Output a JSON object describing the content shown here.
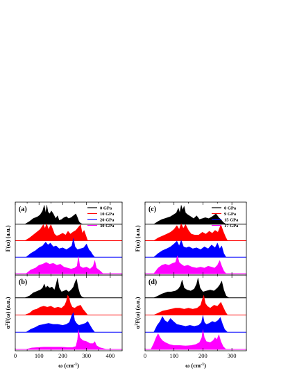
{
  "figure": {
    "panels": [
      {
        "letter": "(a)",
        "ylabel_main": "F(ω) (a.u.)",
        "ylabel_sup": "",
        "xlabel_main": "",
        "xlabel_sup": "",
        "xlim": [
          0,
          450
        ],
        "xticks": [],
        "legend": [
          {
            "label": "0 GPa",
            "color": "#000000"
          },
          {
            "label": "10 GPa",
            "color": "#ff0000"
          },
          {
            "label": "20 GPa",
            "color": "#0000ff"
          },
          {
            "label": "30 GPa",
            "color": "#ff00ff"
          }
        ]
      },
      {
        "letter": "(b)",
        "ylabel_main": "α",
        "ylabel_sup": "2",
        "ylabel_rest": "F(ω) (a.u.)",
        "xlabel_main": "ω (cm",
        "xlabel_sup": "-1",
        "xlabel_end": ")",
        "xlim": [
          0,
          450
        ],
        "xticks": [
          "0",
          "100",
          "200",
          "300",
          "400"
        ],
        "legend": []
      },
      {
        "letter": "(c)",
        "ylabel_main": "F(ω) (a.u.)",
        "ylabel_sup": "",
        "xlabel_main": "",
        "xlabel_sup": "",
        "xlim": [
          0,
          350
        ],
        "xticks": [],
        "legend": [
          {
            "label": "0 GPa",
            "color": "#000000"
          },
          {
            "label": "9 GPa",
            "color": "#ff0000"
          },
          {
            "label": "15 GPa",
            "color": "#0000ff"
          },
          {
            "label": "17 GPa",
            "color": "#ff00ff"
          }
        ]
      },
      {
        "letter": "(d)",
        "ylabel_main": "α",
        "ylabel_sup": "2",
        "ylabel_rest": "F(ω) (a.u.)",
        "xlabel_main": "ω (cm",
        "xlabel_sup": "-1",
        "xlabel_end": ")",
        "xlim": [
          0,
          350
        ],
        "xticks": [
          "0",
          "100",
          "200",
          "300"
        ],
        "legend": []
      }
    ]
  },
  "chart_data": [
    {
      "type": "area",
      "panel": "(a)",
      "xlim": [
        0,
        450
      ],
      "ylabel": "F(ω) (a.u.)",
      "series": [
        {
          "name": "0 GPa",
          "color": "#000000",
          "x": [
            40,
            60,
            75,
            85,
            95,
            105,
            115,
            122,
            128,
            133,
            138,
            145,
            152,
            160,
            170,
            178,
            185,
            195,
            205,
            215,
            225,
            235,
            245,
            255,
            262,
            268,
            275,
            285
          ],
          "y": [
            0,
            0.15,
            0.3,
            0.35,
            0.4,
            0.5,
            0.7,
            1.0,
            0.6,
            1.0,
            0.65,
            0.55,
            0.7,
            0.55,
            0.3,
            0.45,
            0.2,
            0.25,
            0.35,
            0.4,
            0.3,
            0.35,
            0.45,
            0.55,
            0.35,
            0.15,
            0.05,
            0
          ]
        },
        {
          "name": "10 GPa",
          "color": "#ff0000",
          "x": [
            40,
            60,
            75,
            90,
            105,
            118,
            125,
            132,
            140,
            150,
            158,
            165,
            175,
            185,
            200,
            212,
            222,
            232,
            242,
            255,
            265,
            275,
            282,
            290,
            298,
            305
          ],
          "y": [
            0,
            0.15,
            0.3,
            0.45,
            0.6,
            0.85,
            0.65,
            0.9,
            0.6,
            0.85,
            0.6,
            0.35,
            0.25,
            0.3,
            0.4,
            0.3,
            0.5,
            0.35,
            0.45,
            0.55,
            0.7,
            0.85,
            0.4,
            0.55,
            0.25,
            0
          ]
        },
        {
          "name": "20 GPa",
          "color": "#0000ff",
          "x": [
            45,
            65,
            85,
            100,
            115,
            128,
            138,
            148,
            160,
            172,
            185,
            200,
            215,
            228,
            238,
            245,
            252,
            262,
            275,
            288,
            300,
            310,
            318,
            325,
            335
          ],
          "y": [
            0,
            0.2,
            0.35,
            0.5,
            0.6,
            0.8,
            0.65,
            0.75,
            0.55,
            0.6,
            0.45,
            0.5,
            0.4,
            0.5,
            0.6,
            1.0,
            0.55,
            0.4,
            0.45,
            0.5,
            0.7,
            0.4,
            0.3,
            0.15,
            0
          ]
        },
        {
          "name": "30 GPa",
          "color": "#ff00ff",
          "x": [
            45,
            65,
            85,
            100,
            115,
            130,
            145,
            160,
            175,
            190,
            205,
            220,
            235,
            250,
            260,
            266,
            272,
            285,
            300,
            315,
            328,
            335,
            342,
            352,
            362,
            370
          ],
          "y": [
            0,
            0.2,
            0.3,
            0.45,
            0.5,
            0.6,
            0.5,
            0.55,
            0.45,
            0.5,
            0.35,
            0.3,
            0.25,
            0.3,
            0.4,
            0.9,
            0.4,
            0.3,
            0.35,
            0.25,
            0.4,
            0.7,
            0.3,
            0.2,
            0.1,
            0
          ]
        }
      ]
    },
    {
      "type": "area",
      "panel": "(b)",
      "xlim": [
        0,
        450
      ],
      "xlabel": "ω (cm-1)",
      "ylabel": "α2F(ω) (a.u.)",
      "series": [
        {
          "name": "0 GPa",
          "color": "#000000",
          "x": [
            40,
            60,
            75,
            85,
            95,
            105,
            115,
            122,
            128,
            135,
            145,
            155,
            165,
            172,
            178,
            185,
            195,
            205,
            215,
            225,
            235,
            245,
            252,
            258,
            265,
            272,
            280,
            290
          ],
          "y": [
            0,
            0.1,
            0.25,
            0.3,
            0.35,
            0.4,
            0.5,
            0.7,
            0.5,
            0.6,
            0.5,
            0.55,
            0.4,
            0.7,
            1.0,
            0.5,
            0.3,
            0.35,
            0.4,
            0.3,
            0.4,
            0.55,
            0.8,
            0.95,
            0.5,
            0.2,
            0.05,
            0
          ]
        },
        {
          "name": "10 GPa",
          "color": "#ff0000",
          "x": [
            40,
            60,
            75,
            90,
            105,
            120,
            135,
            150,
            165,
            180,
            195,
            208,
            215,
            220,
            225,
            232,
            240,
            250,
            262,
            275,
            285,
            295,
            305
          ],
          "y": [
            0,
            0.1,
            0.25,
            0.3,
            0.4,
            0.45,
            0.4,
            0.45,
            0.35,
            0.4,
            0.35,
            0.5,
            0.7,
            1.0,
            0.95,
            0.6,
            0.4,
            0.35,
            0.45,
            0.5,
            0.3,
            0.15,
            0
          ]
        },
        {
          "name": "20 GPa",
          "color": "#0000ff",
          "x": [
            45,
            65,
            85,
            100,
            120,
            140,
            160,
            180,
            200,
            215,
            228,
            238,
            245,
            250,
            258,
            268,
            282,
            295,
            305,
            315,
            325,
            335
          ],
          "y": [
            0,
            0.15,
            0.25,
            0.35,
            0.4,
            0.45,
            0.4,
            0.4,
            0.35,
            0.4,
            0.5,
            0.85,
            1.0,
            0.6,
            0.45,
            0.35,
            0.4,
            0.45,
            0.55,
            0.35,
            0.15,
            0
          ]
        },
        {
          "name": "30 GPa",
          "color": "#ff00ff",
          "x": [
            45,
            70,
            95,
            120,
            145,
            170,
            195,
            220,
            240,
            255,
            262,
            266,
            272,
            285,
            300,
            315,
            328,
            335,
            342,
            355,
            370,
            385
          ],
          "y": [
            0,
            0.08,
            0.1,
            0.12,
            0.12,
            0.12,
            0.12,
            0.1,
            0.1,
            0.15,
            0.5,
            1.0,
            0.6,
            0.45,
            0.4,
            0.3,
            0.3,
            0.4,
            0.2,
            0.1,
            0.05,
            0
          ]
        }
      ]
    },
    {
      "type": "area",
      "panel": "(c)",
      "xlim": [
        0,
        350
      ],
      "ylabel": "F(ω) (a.u.)",
      "series": [
        {
          "name": "0 GPa",
          "color": "#000000",
          "x": [
            30,
            45,
            58,
            68,
            78,
            88,
            98,
            108,
            115,
            120,
            125,
            130,
            135,
            140,
            148,
            158,
            168,
            178,
            188,
            198,
            208,
            220,
            232,
            245,
            255,
            262,
            270,
            280
          ],
          "y": [
            0,
            0.15,
            0.25,
            0.3,
            0.35,
            0.4,
            0.5,
            0.6,
            0.85,
            0.6,
            1.0,
            0.75,
            0.95,
            0.6,
            0.5,
            0.4,
            0.3,
            0.45,
            0.25,
            0.3,
            0.35,
            0.3,
            0.4,
            0.55,
            0.35,
            0.25,
            0.1,
            0
          ]
        },
        {
          "name": "9 GPa",
          "color": "#ff0000",
          "x": [
            30,
            45,
            60,
            75,
            88,
            100,
            110,
            118,
            125,
            132,
            140,
            150,
            160,
            172,
            185,
            198,
            210,
            222,
            232,
            242,
            252,
            262,
            270,
            278,
            285
          ],
          "y": [
            0,
            0.15,
            0.25,
            0.35,
            0.45,
            0.6,
            0.8,
            0.6,
            0.9,
            0.65,
            0.85,
            0.55,
            0.35,
            0.3,
            0.3,
            0.45,
            0.35,
            0.5,
            0.4,
            0.55,
            0.45,
            0.85,
            0.5,
            0.2,
            0
          ]
        },
        {
          "name": "15 GPa",
          "color": "#0000ff",
          "x": [
            30,
            45,
            60,
            75,
            88,
            100,
            110,
            118,
            125,
            133,
            142,
            152,
            165,
            178,
            192,
            205,
            218,
            230,
            242,
            250,
            258,
            265,
            272,
            280
          ],
          "y": [
            0,
            0.2,
            0.35,
            0.45,
            0.55,
            0.7,
            0.85,
            0.6,
            0.9,
            0.55,
            0.5,
            0.55,
            0.45,
            0.5,
            0.4,
            0.55,
            0.45,
            0.65,
            0.5,
            0.75,
            0.45,
            0.6,
            0.2,
            0
          ]
        },
        {
          "name": "17 GPa",
          "color": "#ff00ff",
          "x": [
            30,
            45,
            58,
            70,
            82,
            95,
            105,
            112,
            118,
            125,
            135,
            148,
            162,
            178,
            192,
            205,
            218,
            230,
            240,
            250,
            258,
            265,
            272,
            280
          ],
          "y": [
            0,
            0.3,
            0.45,
            0.5,
            0.45,
            0.55,
            0.6,
            0.95,
            0.6,
            0.5,
            0.4,
            0.45,
            0.35,
            0.3,
            0.35,
            0.3,
            0.4,
            0.35,
            0.3,
            0.45,
            0.7,
            0.4,
            0.15,
            0
          ]
        }
      ]
    },
    {
      "type": "area",
      "panel": "(d)",
      "xlim": [
        0,
        350
      ],
      "xlabel": "ω (cm-1)",
      "ylabel": "α2F(ω) (a.u.)",
      "series": [
        {
          "name": "0 GPa",
          "color": "#000000",
          "x": [
            30,
            45,
            58,
            68,
            78,
            90,
            105,
            115,
            122,
            128,
            135,
            145,
            158,
            170,
            178,
            183,
            190,
            200,
            212,
            225,
            238,
            250,
            258,
            265,
            272,
            280,
            290
          ],
          "y": [
            0,
            0.1,
            0.2,
            0.25,
            0.3,
            0.3,
            0.35,
            0.45,
            0.6,
            0.9,
            0.5,
            0.4,
            0.35,
            0.45,
            0.7,
            1.0,
            0.5,
            0.3,
            0.35,
            0.4,
            0.35,
            0.5,
            0.65,
            0.85,
            0.4,
            0.1,
            0
          ]
        },
        {
          "name": "9 GPa",
          "color": "#ff0000",
          "x": [
            30,
            45,
            60,
            75,
            90,
            105,
            120,
            135,
            150,
            165,
            180,
            192,
            198,
            203,
            208,
            215,
            225,
            238,
            250,
            262,
            270,
            278,
            285
          ],
          "y": [
            0,
            0.1,
            0.2,
            0.25,
            0.3,
            0.35,
            0.35,
            0.3,
            0.35,
            0.3,
            0.35,
            0.5,
            0.8,
            1.0,
            0.6,
            0.45,
            0.35,
            0.5,
            0.45,
            0.65,
            0.4,
            0.15,
            0
          ]
        },
        {
          "name": "15 GPa",
          "color": "#0000ff",
          "x": [
            30,
            42,
            52,
            60,
            68,
            78,
            88,
            98,
            110,
            125,
            140,
            155,
            170,
            185,
            195,
            200,
            205,
            212,
            222,
            232,
            242,
            252,
            260,
            268,
            275,
            285
          ],
          "y": [
            0,
            0.35,
            0.55,
            0.8,
            0.6,
            0.5,
            0.7,
            0.55,
            0.4,
            0.35,
            0.3,
            0.35,
            0.3,
            0.35,
            0.5,
            0.85,
            0.5,
            0.4,
            0.45,
            0.55,
            0.5,
            0.6,
            0.75,
            0.4,
            0.15,
            0
          ]
        },
        {
          "name": "17 GPa",
          "color": "#ff00ff",
          "x": [
            20,
            30,
            38,
            45,
            52,
            60,
            70,
            85,
            100,
            120,
            140,
            160,
            175,
            188,
            196,
            200,
            205,
            212,
            225,
            235,
            242,
            248,
            255,
            262,
            270,
            280
          ],
          "y": [
            0,
            0.3,
            0.6,
            0.8,
            0.6,
            0.45,
            0.35,
            0.25,
            0.2,
            0.2,
            0.18,
            0.2,
            0.25,
            0.35,
            0.6,
            1.0,
            0.6,
            0.4,
            0.35,
            0.45,
            0.6,
            0.5,
            0.75,
            0.4,
            0.15,
            0
          ]
        }
      ]
    }
  ]
}
